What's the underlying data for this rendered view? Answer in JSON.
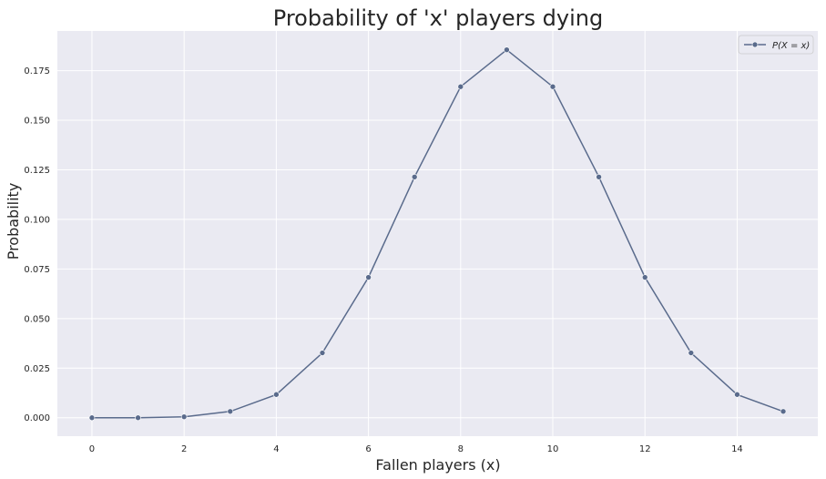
{
  "chart_data": {
    "type": "line",
    "title": "Probability of 'x' players dying",
    "xlabel": "Fallen players (x)",
    "ylabel": "Probability",
    "xlim": [
      -0.75,
      15.75
    ],
    "ylim": [
      -0.0093,
      0.195
    ],
    "x_ticks": [
      0,
      2,
      4,
      6,
      8,
      10,
      12,
      14
    ],
    "x_tick_labels": [
      "0",
      "2",
      "4",
      "6",
      "8",
      "10",
      "12",
      "14"
    ],
    "y_ticks": [
      0.0,
      0.025,
      0.05,
      0.075,
      0.1,
      0.125,
      0.15,
      0.175
    ],
    "y_tick_labels": [
      "0.000",
      "0.025",
      "0.050",
      "0.075",
      "0.100",
      "0.125",
      "0.150",
      "0.175"
    ],
    "grid": true,
    "legend_position": "top-right",
    "colors": {
      "background": "#eaeaf2",
      "grid": "#ffffff",
      "series": "#5a6b8c"
    },
    "series": [
      {
        "name": "P(X = x)",
        "x": [
          0,
          1,
          2,
          3,
          4,
          5,
          6,
          7,
          8,
          9,
          10,
          11,
          12,
          13,
          14,
          15
        ],
        "y": [
          0.0,
          0.0,
          0.0005,
          0.0032,
          0.0117,
          0.0327,
          0.0708,
          0.1214,
          0.1669,
          0.1855,
          0.1669,
          0.1214,
          0.0708,
          0.0327,
          0.0117,
          0.0032
        ]
      }
    ]
  }
}
